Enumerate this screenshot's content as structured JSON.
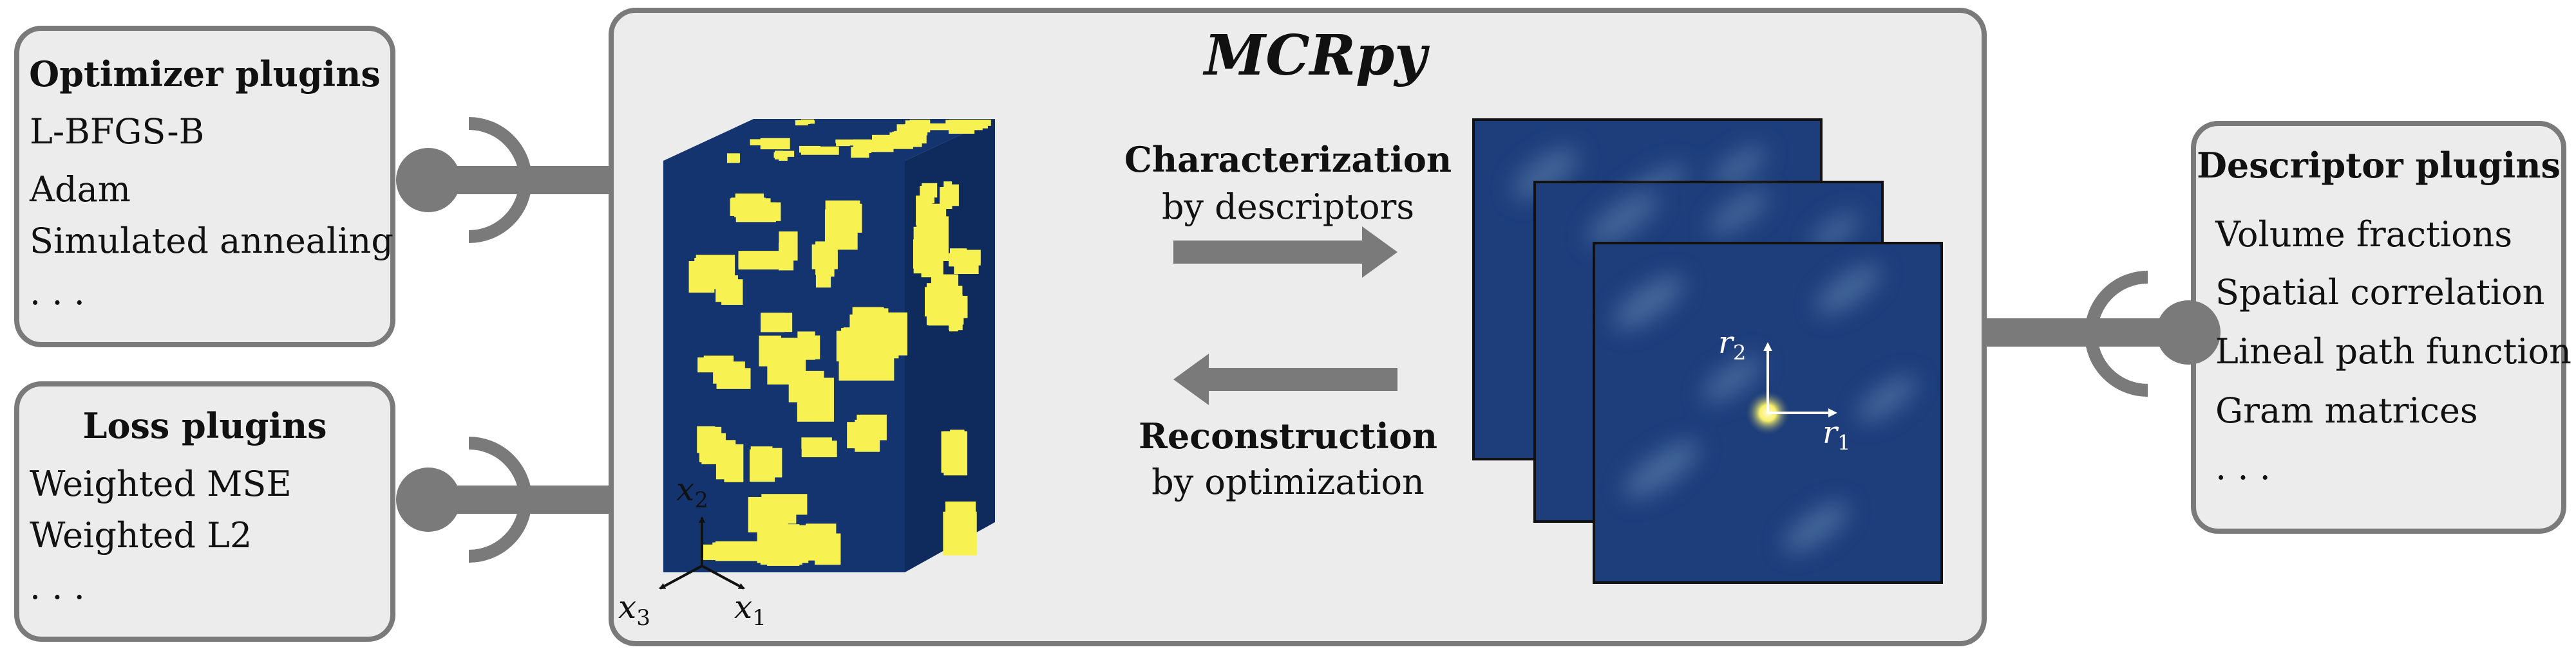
{
  "title": "MCRpy",
  "optimizer": {
    "title": "Optimizer plugins",
    "items": [
      "L-BFGS-B",
      "Adam",
      "Simulated annealing",
      ". . ."
    ]
  },
  "loss": {
    "title": "Loss plugins",
    "items": [
      "Weighted MSE",
      "Weighted L2",
      ". . ."
    ]
  },
  "descriptor": {
    "title": "Descriptor plugins",
    "items": [
      "Volume fractions",
      "Spatial correlation",
      "Lineal path function",
      "Gram matrices",
      ". . ."
    ]
  },
  "characterization": {
    "bold": "Characterization",
    "sub": "by descriptors"
  },
  "reconstruction": {
    "bold": "Reconstruction",
    "sub": "by optimization"
  },
  "axes3d": {
    "x1": "x",
    "x1_sub": "1",
    "x2": "x",
    "x2_sub": "2",
    "x3": "x",
    "x3_sub": "3"
  },
  "axes2d": {
    "r1": "r",
    "r1_sub": "1",
    "r2": "r",
    "r2_sub": "2"
  },
  "colors": {
    "box_border": "#7a7a7a",
    "box_fill": "#ececec",
    "connector": "#7a7a7a",
    "micro_dark": "#13346e",
    "micro_light": "#f7f251",
    "map_dark": "#1d3d7b",
    "map_highlight": "#f7f06a"
  }
}
